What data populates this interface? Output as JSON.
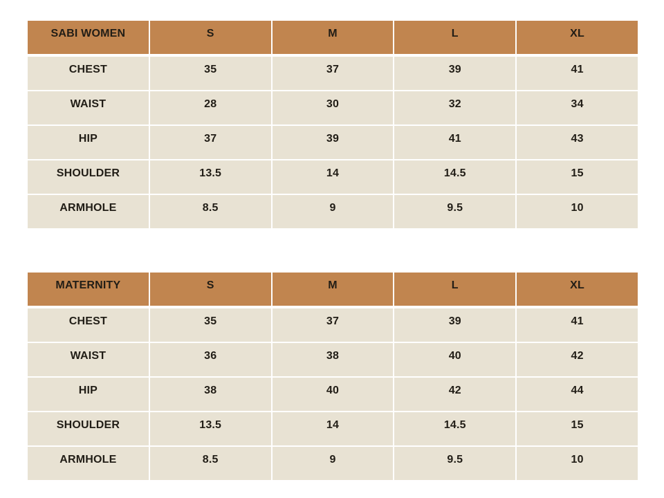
{
  "page": {
    "background": "#ffffff"
  },
  "colors": {
    "header_bg": "#c1854f",
    "row_bg": "#e8e2d3",
    "text": "#211d16",
    "gridline": "#ffffff"
  },
  "tables": [
    {
      "name": "sabi-women-size-chart",
      "header": [
        "SABI WOMEN",
        "S",
        "M",
        "L",
        "XL"
      ],
      "rows": [
        [
          "CHEST",
          "35",
          "37",
          "39",
          "41"
        ],
        [
          "WAIST",
          "28",
          "30",
          "32",
          "34"
        ],
        [
          "HIP",
          "37",
          "39",
          "41",
          "43"
        ],
        [
          "SHOULDER",
          "13.5",
          "14",
          "14.5",
          "15"
        ],
        [
          "ARMHOLE",
          "8.5",
          "9",
          "9.5",
          "10"
        ]
      ]
    },
    {
      "name": "maternity-size-chart",
      "header": [
        "MATERNITY",
        "S",
        "M",
        "L",
        "XL"
      ],
      "rows": [
        [
          "CHEST",
          "35",
          "37",
          "39",
          "41"
        ],
        [
          "WAIST",
          "36",
          "38",
          "40",
          "42"
        ],
        [
          "HIP",
          "38",
          "40",
          "42",
          "44"
        ],
        [
          "SHOULDER",
          "13.5",
          "14",
          "14.5",
          "15"
        ],
        [
          "ARMHOLE",
          "8.5",
          "9",
          "9.5",
          "10"
        ]
      ]
    }
  ]
}
